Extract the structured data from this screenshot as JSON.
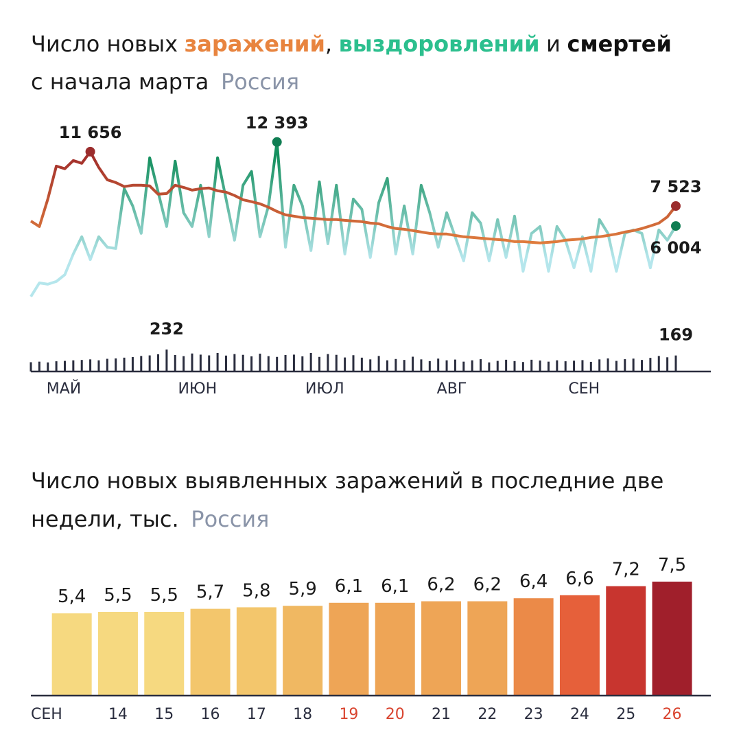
{
  "chart_data": [
    {
      "type": "line",
      "title": "Число новых",
      "title_sep1": ",",
      "title_sep2": "и",
      "subtitle": "с начала марта",
      "region": "Россия",
      "x": [
        0,
        2,
        4,
        6,
        8,
        10,
        12,
        14,
        16,
        18,
        20,
        22,
        24,
        26,
        28,
        30,
        32,
        34,
        36,
        38,
        40,
        42,
        44,
        46,
        48,
        50,
        52,
        54,
        56,
        58,
        60,
        62,
        64,
        66,
        68,
        70,
        72,
        74,
        76,
        78,
        80,
        82,
        84,
        86,
        88,
        90,
        92,
        94,
        96,
        98,
        100,
        102,
        104,
        106,
        108,
        110,
        112,
        114,
        116,
        118,
        120,
        122,
        124,
        126,
        128,
        130,
        132,
        134,
        136,
        138,
        140,
        142,
        144,
        146,
        148,
        150,
        152
      ],
      "xlim": [
        0,
        152
      ],
      "xticks": [
        {
          "value": 4,
          "label": "МАЙ"
        },
        {
          "value": 35,
          "label": "ИЮН"
        },
        {
          "value": 65,
          "label": "ИЮЛ"
        },
        {
          "value": 96,
          "label": "АВГ"
        },
        {
          "value": 127,
          "label": "СЕН"
        }
      ],
      "ylim": [
        0,
        14000
      ],
      "y2lim": [
        0,
        1000
      ],
      "series": [
        {
          "name": "заражений",
          "color": "#e8843f",
          "gradient": [
            "#ea8a40",
            "#a3302c"
          ],
          "values": [
            6380,
            5960,
            8050,
            10560,
            10360,
            10980,
            10770,
            11656,
            10460,
            9520,
            9310,
            9000,
            9100,
            9100,
            9050,
            8420,
            8470,
            9100,
            8940,
            8730,
            8840,
            8890,
            8680,
            8580,
            8320,
            8000,
            7850,
            7690,
            7430,
            7110,
            6850,
            6750,
            6640,
            6590,
            6540,
            6490,
            6490,
            6430,
            6380,
            6330,
            6220,
            6170,
            5960,
            5810,
            5750,
            5650,
            5540,
            5440,
            5390,
            5390,
            5280,
            5180,
            5130,
            5070,
            5020,
            4970,
            4920,
            4810,
            4810,
            4760,
            4710,
            4760,
            4810,
            4920,
            4970,
            5020,
            5130,
            5180,
            5280,
            5390,
            5540,
            5650,
            5810,
            6010,
            6220,
            6690,
            7523
          ],
          "value_labels": [
            null,
            null,
            null,
            null,
            null,
            null,
            null,
            "11 656",
            null,
            null,
            null,
            null,
            null,
            null,
            null,
            null,
            null,
            null,
            null,
            null,
            null,
            null,
            null,
            null,
            null,
            null,
            null,
            null,
            null,
            null,
            null,
            null,
            null,
            null,
            null,
            null,
            null,
            null,
            null,
            null,
            null,
            null,
            null,
            null,
            null,
            null,
            null,
            null,
            null,
            null,
            null,
            null,
            null,
            null,
            null,
            null,
            null,
            null,
            null,
            null,
            null,
            null,
            null,
            null,
            null,
            null,
            null,
            null,
            null,
            null,
            null,
            null,
            null,
            null,
            null,
            null,
            "7 523"
          ],
          "dot_color": "#9b2d2d"
        },
        {
          "name": "выздоровлений",
          "color": "#2cbf8e",
          "gradient": [
            "#b5e6ec",
            "#15905f"
          ],
          "values": [
            630,
            1670,
            1570,
            1780,
            2300,
            3870,
            5180,
            3450,
            5180,
            4390,
            4290,
            8840,
            7530,
            5440,
            11190,
            8580,
            5960,
            10930,
            7010,
            5960,
            9100,
            5180,
            11190,
            8050,
            4920,
            9100,
            10150,
            5180,
            7530,
            12393,
            4390,
            9100,
            7530,
            4130,
            9360,
            4650,
            9100,
            3870,
            8050,
            7270,
            3610,
            7790,
            9620,
            3870,
            7530,
            3870,
            9100,
            7010,
            4390,
            7010,
            5180,
            3350,
            7010,
            6220,
            3350,
            6490,
            3610,
            6750,
            2560,
            5440,
            5960,
            2560,
            5960,
            4920,
            2820,
            5180,
            2560,
            6490,
            5440,
            2560,
            5440,
            5700,
            5440,
            2820,
            5700,
            4920,
            6004
          ],
          "value_labels": [
            null,
            null,
            null,
            null,
            null,
            null,
            null,
            null,
            null,
            null,
            null,
            null,
            null,
            null,
            null,
            null,
            null,
            null,
            null,
            null,
            null,
            null,
            null,
            null,
            null,
            null,
            null,
            null,
            null,
            "12 393",
            null,
            null,
            null,
            null,
            null,
            null,
            null,
            null,
            null,
            null,
            null,
            null,
            null,
            null,
            null,
            null,
            null,
            null,
            null,
            null,
            null,
            null,
            null,
            null,
            null,
            null,
            null,
            null,
            null,
            null,
            null,
            null,
            null,
            null,
            null,
            null,
            null,
            null,
            null,
            null,
            null,
            null,
            null,
            null,
            null,
            null,
            "6 004"
          ],
          "dot_color": "#0f7d52"
        },
        {
          "name": "смертей",
          "color": "#2a2d3e",
          "axis": "y2",
          "values": [
            98,
            104,
            96,
            108,
            112,
            118,
            122,
            128,
            118,
            134,
            138,
            146,
            152,
            164,
            170,
            182,
            232,
            174,
            162,
            190,
            178,
            170,
            196,
            168,
            184,
            176,
            160,
            188,
            162,
            154,
            174,
            178,
            160,
            196,
            154,
            184,
            176,
            148,
            172,
            146,
            128,
            164,
            118,
            132,
            122,
            156,
            128,
            110,
            136,
            118,
            126,
            104,
            118,
            130,
            96,
            112,
            124,
            110,
            100,
            124,
            116,
            104,
            118,
            108,
            114,
            120,
            102,
            128,
            138,
            112,
            130,
            136,
            122,
            144,
            164,
            150,
            169
          ],
          "value_labels": [
            null,
            null,
            null,
            null,
            null,
            null,
            null,
            null,
            null,
            null,
            null,
            null,
            null,
            null,
            null,
            null,
            "232",
            null,
            null,
            null,
            null,
            null,
            null,
            null,
            null,
            null,
            null,
            null,
            null,
            null,
            null,
            null,
            null,
            null,
            null,
            null,
            null,
            null,
            null,
            null,
            null,
            null,
            null,
            null,
            null,
            null,
            null,
            null,
            null,
            null,
            null,
            null,
            null,
            null,
            null,
            null,
            null,
            null,
            null,
            null,
            null,
            null,
            null,
            null,
            null,
            null,
            null,
            null,
            null,
            null,
            null,
            null,
            null,
            null,
            null,
            null,
            "169"
          ]
        }
      ]
    },
    {
      "type": "bar",
      "title": "Число новых выявленных заражений в последние две недели, тыс.",
      "region": "Россия",
      "categories": [
        "СЕН",
        "14",
        "15",
        "16",
        "17",
        "18",
        "19",
        "20",
        "21",
        "22",
        "23",
        "24",
        "25",
        "26"
      ],
      "values": [
        5.4,
        5.5,
        5.5,
        5.7,
        5.8,
        5.9,
        6.1,
        6.1,
        6.2,
        6.2,
        6.4,
        6.6,
        7.2,
        7.5
      ],
      "value_labels": [
        "5,4",
        "5,5",
        "5,5",
        "5,7",
        "5,8",
        "5,9",
        "6,1",
        "6,1",
        "6,2",
        "6,2",
        "6,4",
        "6,6",
        "7,2",
        "7,5"
      ],
      "colors": [
        "#f6d980",
        "#f6d980",
        "#f6d980",
        "#f3c66c",
        "#f3c66c",
        "#f0b862",
        "#eea556",
        "#eea556",
        "#eea556",
        "#eea556",
        "#eb8a48",
        "#e6603a",
        "#c8352f",
        "#a01f2b"
      ],
      "label_colors": [
        "#2a2d3e",
        "#2a2d3e",
        "#2a2d3e",
        "#2a2d3e",
        "#2a2d3e",
        "#2a2d3e",
        "#d9442f",
        "#d9442f",
        "#2a2d3e",
        "#2a2d3e",
        "#2a2d3e",
        "#2a2d3e",
        "#2a2d3e",
        "#d9442f"
      ],
      "ylim": [
        0,
        7.5
      ]
    }
  ]
}
